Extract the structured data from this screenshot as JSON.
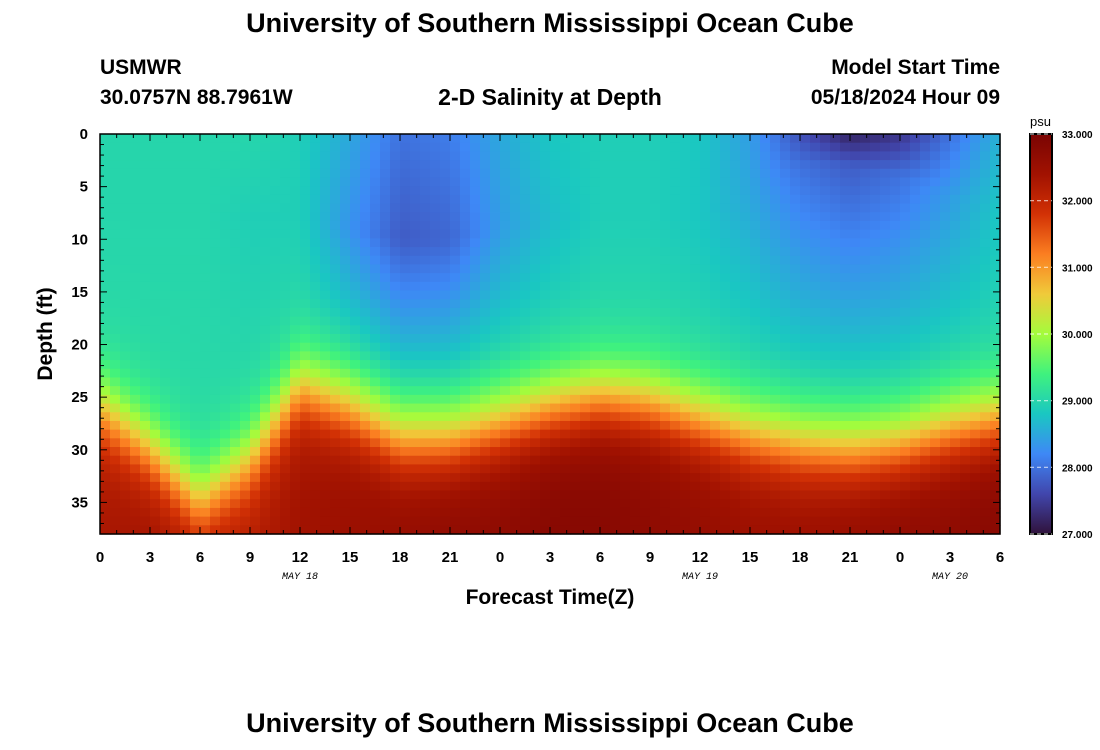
{
  "header": {
    "title": "University of Southern Mississippi Ocean Cube",
    "station_id": "USMWR",
    "station_coords": "30.0757N  88.7961W",
    "plot_title": "2-D Salinity at Depth",
    "start_label": "Model Start Time",
    "start_value": "05/18/2024 Hour 09"
  },
  "footer": {
    "title": "University of Southern Mississippi Ocean Cube"
  },
  "chart_data": {
    "type": "heatmap",
    "title": "2-D Salinity at Depth",
    "xlabel": "Forecast Time(Z)",
    "ylabel": "Depth (ft)",
    "x_tick_labels": [
      "0",
      "3",
      "6",
      "9",
      "12",
      "15",
      "18",
      "21",
      "0",
      "3",
      "6",
      "9",
      "12",
      "15",
      "18",
      "21",
      "0",
      "3",
      "6"
    ],
    "x_hours": [
      0,
      3,
      6,
      9,
      12,
      15,
      18,
      21,
      24,
      27,
      30,
      33,
      36,
      39,
      42,
      45,
      48,
      51,
      54
    ],
    "xlim": [
      0,
      54
    ],
    "date_labels": [
      {
        "label": "MAY 18",
        "hour": 12
      },
      {
        "label": "MAY 19",
        "hour": 36
      },
      {
        "label": "MAY 20",
        "hour": 51
      }
    ],
    "y_ticks": [
      0,
      5,
      10,
      15,
      20,
      25,
      30,
      35
    ],
    "ylim": [
      0,
      38
    ],
    "y_reversed": true,
    "colorbar": {
      "unit": "psu",
      "min": 27.0,
      "max": 33.0,
      "ticks": [
        "27.000",
        "28.000",
        "29.000",
        "30.000",
        "31.000",
        "32.000",
        "33.000"
      ],
      "colormap": [
        "#30123b",
        "#4146ac",
        "#3e88f6",
        "#1ac7c2",
        "#3ff27e",
        "#a4fc3c",
        "#f0ca3a",
        "#fb7e21",
        "#d23105",
        "#a11201",
        "#7a0403"
      ]
    },
    "salinity_model": {
      "x_hours": [
        0,
        3,
        6,
        9,
        12,
        15,
        18,
        21,
        24,
        27,
        30,
        33,
        36,
        39,
        42,
        45,
        48,
        51,
        54
      ],
      "surface_psu": [
        29.0,
        29.0,
        29.0,
        29.0,
        28.9,
        28.5,
        28.0,
        28.1,
        28.5,
        28.8,
        28.9,
        28.9,
        28.8,
        28.4,
        27.7,
        27.2,
        27.4,
        28.0,
        28.6
      ],
      "midlayer_psu": [
        29.0,
        29.0,
        29.0,
        28.9,
        28.9,
        28.3,
        27.8,
        27.9,
        28.4,
        28.7,
        28.9,
        28.9,
        28.8,
        28.5,
        28.0,
        27.8,
        28.0,
        28.4,
        28.8
      ],
      "midlayer_depth_ft": [
        8,
        8,
        8,
        8,
        8,
        9,
        10,
        10,
        9,
        8,
        8,
        8,
        8,
        6,
        3,
        3,
        4,
        6,
        7
      ],
      "mixed_layer_depth_ft": [
        26,
        30,
        35,
        31,
        24,
        26,
        29,
        29,
        27.5,
        26,
        25,
        25.5,
        27,
        28.5,
        29.5,
        30,
        29.5,
        28,
        27
      ],
      "bottom_psu": [
        32.3,
        32.4,
        32.3,
        32.2,
        32.4,
        32.5,
        32.6,
        32.7,
        32.7,
        32.8,
        32.8,
        32.7,
        32.6,
        32.5,
        32.5,
        32.6,
        32.7,
        32.7,
        32.8
      ]
    }
  }
}
